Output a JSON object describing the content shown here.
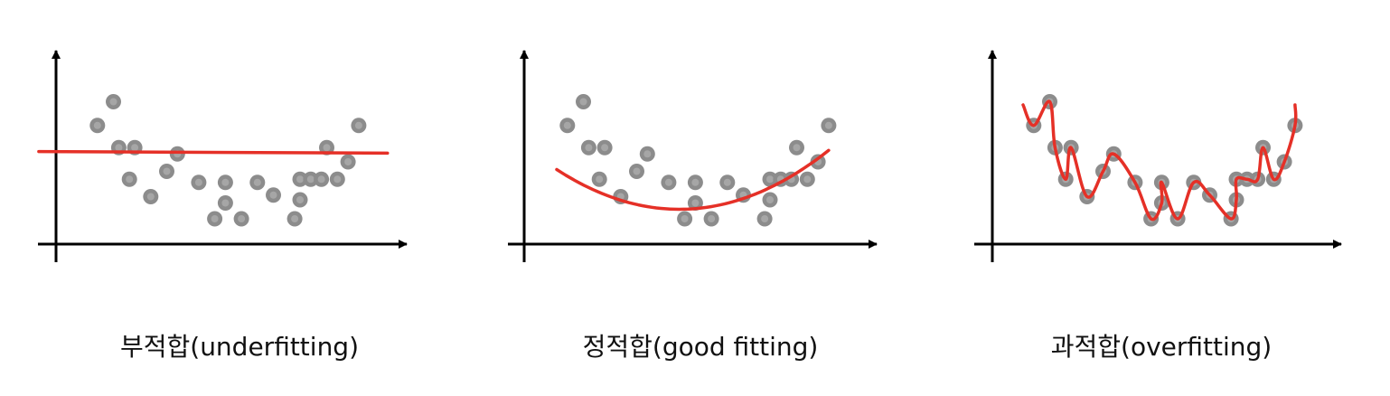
{
  "colors": {
    "axis": "#000000",
    "fit_line": "#e53027",
    "point_fill": "#8c8c8c",
    "point_inner": "#a6a6a6"
  },
  "panels": [
    {
      "caption": "부적합(underfitting)",
      "fit": "flat",
      "points": [
        [
          0.1,
          0.75
        ],
        [
          0.25,
          0.9
        ],
        [
          0.3,
          0.61
        ],
        [
          0.4,
          0.41
        ],
        [
          0.45,
          0.61
        ],
        [
          0.6,
          0.3
        ],
        [
          0.75,
          0.46
        ],
        [
          0.85,
          0.57
        ],
        [
          1.05,
          0.39
        ],
        [
          1.2,
          0.16
        ],
        [
          1.3,
          0.39
        ],
        [
          1.3,
          0.26
        ],
        [
          1.45,
          0.16
        ],
        [
          1.6,
          0.39
        ],
        [
          1.75,
          0.31
        ],
        [
          1.95,
          0.16
        ],
        [
          2.0,
          0.28
        ],
        [
          2.0,
          0.41
        ],
        [
          2.1,
          0.41
        ],
        [
          2.2,
          0.41
        ],
        [
          2.25,
          0.61
        ],
        [
          2.35,
          0.41
        ],
        [
          2.45,
          0.52
        ],
        [
          2.55,
          0.75
        ]
      ]
    },
    {
      "caption": "정적합(good fitting)",
      "fit": "quadratic",
      "points": [
        [
          0.1,
          0.75
        ],
        [
          0.25,
          0.9
        ],
        [
          0.3,
          0.61
        ],
        [
          0.4,
          0.41
        ],
        [
          0.45,
          0.61
        ],
        [
          0.6,
          0.3
        ],
        [
          0.75,
          0.46
        ],
        [
          0.85,
          0.57
        ],
        [
          1.05,
          0.39
        ],
        [
          1.2,
          0.16
        ],
        [
          1.3,
          0.39
        ],
        [
          1.3,
          0.26
        ],
        [
          1.45,
          0.16
        ],
        [
          1.6,
          0.39
        ],
        [
          1.75,
          0.31
        ],
        [
          1.95,
          0.16
        ],
        [
          2.0,
          0.28
        ],
        [
          2.0,
          0.41
        ],
        [
          2.1,
          0.41
        ],
        [
          2.2,
          0.41
        ],
        [
          2.25,
          0.61
        ],
        [
          2.35,
          0.41
        ],
        [
          2.45,
          0.52
        ],
        [
          2.55,
          0.75
        ]
      ]
    },
    {
      "caption": "과적합(overfitting)",
      "fit": "interpolate",
      "points": [
        [
          0.1,
          0.75
        ],
        [
          0.25,
          0.9
        ],
        [
          0.3,
          0.61
        ],
        [
          0.4,
          0.41
        ],
        [
          0.45,
          0.61
        ],
        [
          0.6,
          0.3
        ],
        [
          0.75,
          0.46
        ],
        [
          0.85,
          0.57
        ],
        [
          1.05,
          0.39
        ],
        [
          1.2,
          0.16
        ],
        [
          1.3,
          0.39
        ],
        [
          1.3,
          0.26
        ],
        [
          1.45,
          0.16
        ],
        [
          1.6,
          0.39
        ],
        [
          1.75,
          0.31
        ],
        [
          1.95,
          0.16
        ],
        [
          2.0,
          0.28
        ],
        [
          2.0,
          0.41
        ],
        [
          2.1,
          0.41
        ],
        [
          2.2,
          0.41
        ],
        [
          2.25,
          0.61
        ],
        [
          2.35,
          0.41
        ],
        [
          2.45,
          0.52
        ],
        [
          2.55,
          0.75
        ]
      ]
    }
  ]
}
